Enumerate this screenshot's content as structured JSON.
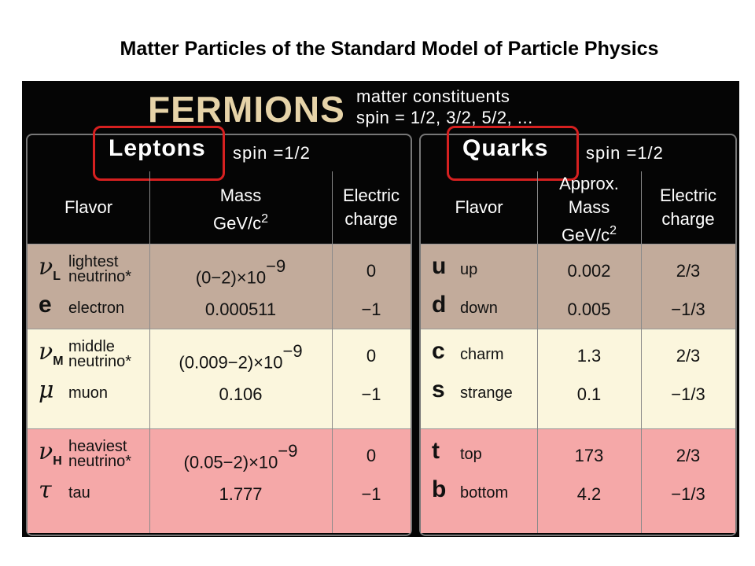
{
  "title": "Matter Particles of the Standard Model of Particle Physics",
  "header": {
    "title": "FERMIONS",
    "lines": [
      "matter constituents",
      "spin = 1/2, 3/2, 5/2, ..."
    ]
  },
  "leptons": {
    "heading": "Leptons",
    "spin": "spin =1/2",
    "columns": [
      {
        "lines": [
          "Flavor"
        ]
      },
      {
        "lines": [
          "Mass",
          "GeV/c"
        ],
        "sup": "2"
      },
      {
        "lines": [
          "Electric",
          "charge"
        ]
      }
    ],
    "rows": [
      {
        "symbol": "ν",
        "sub": "L",
        "name": "lightest neutrino*",
        "mass": "(0−2)×10",
        "exp": "−9",
        "charge": "0"
      },
      {
        "symbol": "e",
        "name": "electron",
        "mass": "0.000511",
        "charge": "−1"
      },
      {
        "symbol": "ν",
        "sub": "M",
        "name": "middle neutrino*",
        "mass": "(0.009−2)×10",
        "exp": "−9",
        "charge": "0"
      },
      {
        "symbol": "μ",
        "name": "muon",
        "mass": "0.106",
        "charge": "−1"
      },
      {
        "symbol": "ν",
        "sub": "H",
        "name": "heaviest neutrino*",
        "mass": "(0.05−2)×10",
        "exp": "−9",
        "charge": "0"
      },
      {
        "symbol": "τ",
        "name": "tau",
        "mass": "1.777",
        "charge": "−1"
      }
    ]
  },
  "quarks": {
    "heading": "Quarks",
    "spin": "spin =1/2",
    "columns": [
      {
        "lines": [
          "Flavor"
        ]
      },
      {
        "lines": [
          "Approx.",
          "Mass",
          "GeV/c"
        ],
        "sup": "2"
      },
      {
        "lines": [
          "Electric",
          "charge"
        ]
      }
    ],
    "rows": [
      {
        "symbol": "u",
        "name": "up",
        "mass": "0.002",
        "charge": "2/3"
      },
      {
        "symbol": "d",
        "name": "down",
        "mass": "0.005",
        "charge": "−1/3"
      },
      {
        "symbol": "c",
        "name": "charm",
        "mass": "1.3",
        "charge": "2/3"
      },
      {
        "symbol": "s",
        "name": "strange",
        "mass": "0.1",
        "charge": "−1/3"
      },
      {
        "symbol": "t",
        "name": "top",
        "mass": "173",
        "charge": "2/3"
      },
      {
        "symbol": "b",
        "name": "bottom",
        "mass": "4.2",
        "charge": "−1/3"
      }
    ]
  }
}
